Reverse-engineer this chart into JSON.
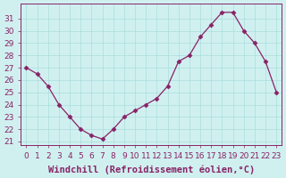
{
  "x": [
    0,
    1,
    2,
    3,
    4,
    5,
    6,
    7,
    8,
    9,
    10,
    11,
    12,
    13,
    14,
    15,
    16,
    17,
    18,
    19,
    20,
    21,
    22,
    23
  ],
  "y": [
    27,
    26.5,
    25.5,
    24,
    23,
    22,
    21.5,
    21.2,
    22,
    23,
    23.5,
    24,
    24.5,
    25.5,
    27.5,
    28,
    29.5,
    30.5,
    31.5,
    31.5,
    30,
    29,
    27.5,
    25
  ],
  "line_color": "#882266",
  "marker": "D",
  "marker_size": 2.5,
  "bg_color": "#d0f0f0",
  "grid_color": "#aadddd",
  "xlabel": "Windchill (Refroidissement éolien,°C)",
  "yticks": [
    21,
    22,
    23,
    24,
    25,
    26,
    27,
    28,
    29,
    30,
    31
  ],
  "xticks": [
    0,
    1,
    2,
    3,
    4,
    5,
    6,
    7,
    8,
    9,
    10,
    11,
    12,
    13,
    14,
    15,
    16,
    17,
    18,
    19,
    20,
    21,
    22,
    23
  ],
  "ylim": [
    20.7,
    32.2
  ],
  "xlim": [
    -0.5,
    23.5
  ],
  "xlabel_color": "#882266",
  "tick_color": "#882266",
  "axis_color": "#882266",
  "xlabel_fontsize": 7.5,
  "tick_fontsize": 6.5
}
